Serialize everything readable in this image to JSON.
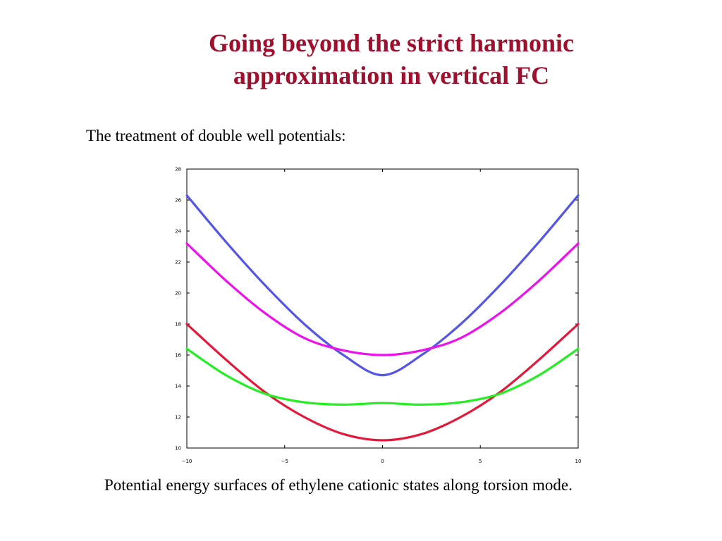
{
  "slide": {
    "title_line1": "Going beyond the strict harmonic",
    "title_line2": "approximation in vertical FC",
    "subtitle": "The treatment of double well potentials:",
    "caption": "Potential energy surfaces of ethylene cationic states along torsion mode."
  },
  "chart_data": {
    "type": "line",
    "title": "",
    "xlabel": "",
    "ylabel": "",
    "xlim": [
      -10,
      10
    ],
    "ylim": [
      10,
      28
    ],
    "xticks": [
      -10,
      -5,
      0,
      5,
      10
    ],
    "yticks": [
      10,
      12,
      14,
      16,
      18,
      20,
      22,
      24,
      26,
      28
    ],
    "grid": false,
    "legend": "none",
    "series": [
      {
        "color": "#5555e6",
        "x": [
          -10,
          -8,
          -6,
          -4,
          -2,
          0,
          2,
          4,
          6,
          8,
          10
        ],
        "y": [
          26.3,
          23.3,
          20.5,
          18.0,
          16.0,
          14.7,
          16.0,
          18.0,
          20.5,
          23.3,
          26.3
        ]
      },
      {
        "color": "#ee11ee",
        "x": [
          -10,
          -8,
          -6,
          -4,
          -2,
          0,
          2,
          4,
          6,
          8,
          10
        ],
        "y": [
          23.2,
          20.8,
          18.7,
          17.1,
          16.3,
          16.0,
          16.3,
          17.1,
          18.7,
          20.8,
          23.2
        ]
      },
      {
        "color": "#e6183a",
        "x": [
          -10,
          -8,
          -6,
          -4,
          -2,
          0,
          2,
          4,
          6,
          8,
          10
        ],
        "y": [
          18.0,
          15.7,
          13.6,
          12.0,
          10.9,
          10.5,
          10.9,
          12.0,
          13.6,
          15.7,
          18.0
        ]
      },
      {
        "color": "#22ee22",
        "x": [
          -10,
          -8,
          -6,
          -4,
          -2,
          0,
          2,
          4,
          6,
          8,
          10
        ],
        "y": [
          16.4,
          14.7,
          13.5,
          12.95,
          12.8,
          12.9,
          12.8,
          12.95,
          13.5,
          14.7,
          16.4
        ]
      }
    ]
  }
}
